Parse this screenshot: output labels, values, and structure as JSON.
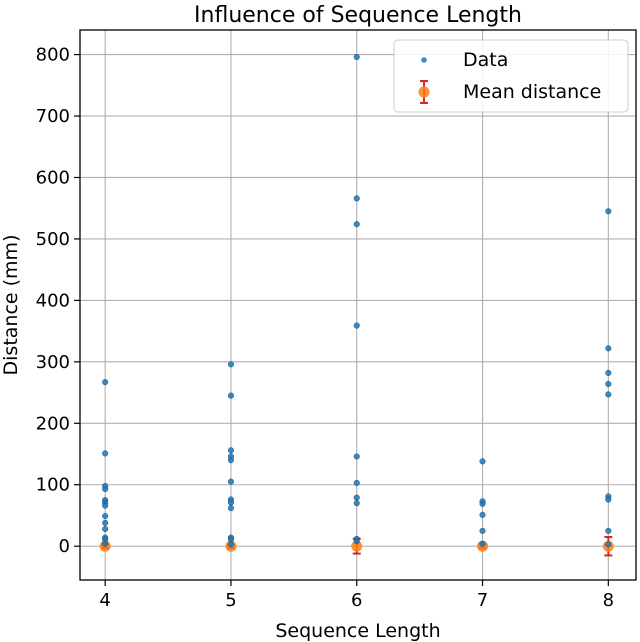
{
  "chart_data": {
    "type": "scatter",
    "title": "Influence of Sequence Length",
    "xlabel": "Sequence Length",
    "ylabel": "Distance (mm)",
    "xlim": [
      3.8,
      8.22
    ],
    "ylim": [
      -55,
      840
    ],
    "x_ticks": [
      "4",
      "5",
      "6",
      "7",
      "8"
    ],
    "y_ticks": [
      "0",
      "100",
      "200",
      "300",
      "400",
      "500",
      "600",
      "700",
      "800"
    ],
    "grid": true,
    "legend_position": "top-right",
    "colors": {
      "data": "#1f77b4",
      "mean": "#ff7f0e",
      "errorbar": "#d62728"
    },
    "series": [
      {
        "name": "Data",
        "kind": "scatter",
        "points": [
          {
            "x": 4,
            "y": 267
          },
          {
            "x": 4,
            "y": 151
          },
          {
            "x": 4,
            "y": 98
          },
          {
            "x": 4,
            "y": 93
          },
          {
            "x": 4,
            "y": 75
          },
          {
            "x": 4,
            "y": 71
          },
          {
            "x": 4,
            "y": 66
          },
          {
            "x": 4,
            "y": 49
          },
          {
            "x": 4,
            "y": 38
          },
          {
            "x": 4,
            "y": 28
          },
          {
            "x": 4,
            "y": 14
          },
          {
            "x": 4,
            "y": 11
          },
          {
            "x": 4,
            "y": 4
          },
          {
            "x": 5,
            "y": 296
          },
          {
            "x": 5,
            "y": 245
          },
          {
            "x": 5,
            "y": 156
          },
          {
            "x": 5,
            "y": 146
          },
          {
            "x": 5,
            "y": 140
          },
          {
            "x": 5,
            "y": 105
          },
          {
            "x": 5,
            "y": 76
          },
          {
            "x": 5,
            "y": 71
          },
          {
            "x": 5,
            "y": 62
          },
          {
            "x": 5,
            "y": 14
          },
          {
            "x": 5,
            "y": 11
          },
          {
            "x": 5,
            "y": 3
          },
          {
            "x": 6,
            "y": 796
          },
          {
            "x": 6,
            "y": 566
          },
          {
            "x": 6,
            "y": 524
          },
          {
            "x": 6,
            "y": 359
          },
          {
            "x": 6,
            "y": 146
          },
          {
            "x": 6,
            "y": 103
          },
          {
            "x": 6,
            "y": 79
          },
          {
            "x": 6,
            "y": 70
          },
          {
            "x": 6,
            "y": 12
          },
          {
            "x": 6,
            "y": 8
          },
          {
            "x": 7,
            "y": 138
          },
          {
            "x": 7,
            "y": 73
          },
          {
            "x": 7,
            "y": 69
          },
          {
            "x": 7,
            "y": 51
          },
          {
            "x": 7,
            "y": 25
          },
          {
            "x": 7,
            "y": 4
          },
          {
            "x": 8,
            "y": 545
          },
          {
            "x": 8,
            "y": 322
          },
          {
            "x": 8,
            "y": 282
          },
          {
            "x": 8,
            "y": 264
          },
          {
            "x": 8,
            "y": 247
          },
          {
            "x": 8,
            "y": 81
          },
          {
            "x": 8,
            "y": 76
          },
          {
            "x": 8,
            "y": 25
          },
          {
            "x": 8,
            "y": 3
          }
        ]
      },
      {
        "name": "Mean distance",
        "kind": "errorbar",
        "points": [
          {
            "x": 4,
            "y": 0,
            "err": 3
          },
          {
            "x": 5,
            "y": 0,
            "err": 3
          },
          {
            "x": 6,
            "y": 0,
            "err": 12
          },
          {
            "x": 7,
            "y": 0,
            "err": 3
          },
          {
            "x": 8,
            "y": 0,
            "err": 15
          }
        ]
      }
    ]
  }
}
